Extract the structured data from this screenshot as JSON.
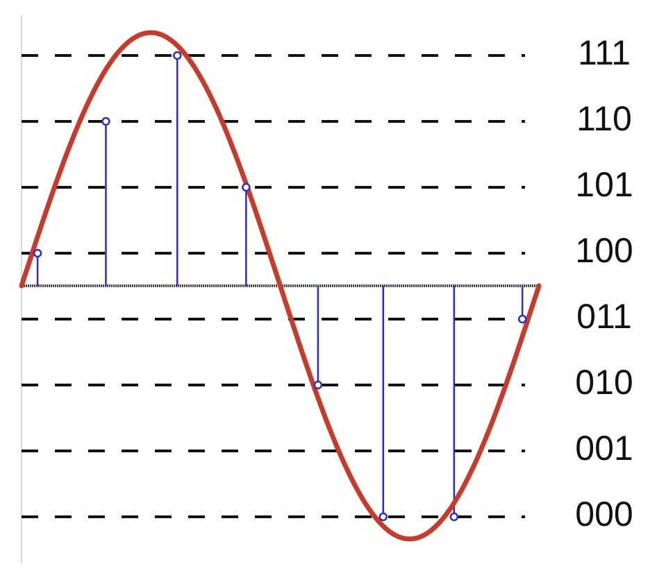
{
  "chart_data": {
    "type": "line",
    "title": "",
    "xlabel": "",
    "ylabel": "",
    "levels": [
      "000",
      "001",
      "010",
      "011",
      "100",
      "101",
      "110",
      "111"
    ],
    "ylim": [
      -1.1,
      1.1
    ],
    "xlim": [
      0,
      1
    ],
    "signal": {
      "kind": "sine",
      "amplitude": 1.0,
      "cycles": 1,
      "color": "#c83a2a"
    },
    "samples": {
      "color": "#2a2ad6",
      "x": [
        0.031,
        0.163,
        0.301,
        0.434,
        0.573,
        0.699,
        0.836,
        0.968
      ],
      "code": [
        "100",
        "110",
        "111",
        "101",
        "010",
        "000",
        "000",
        "011"
      ]
    },
    "gridlines": {
      "style": "dashed",
      "color": "#111111"
    },
    "axis": {
      "zero_line_color": "#444444"
    }
  }
}
